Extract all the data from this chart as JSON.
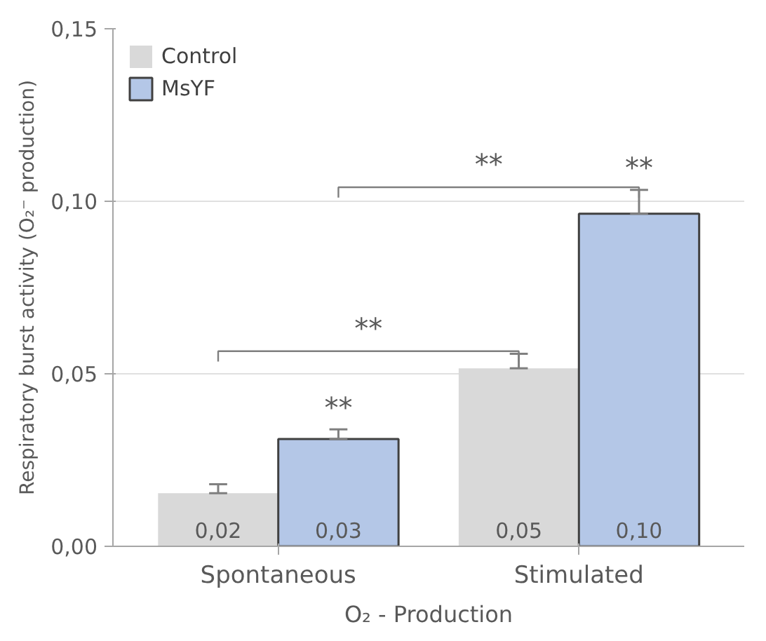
{
  "chart_data": {
    "type": "bar",
    "categories": [
      "Spontaneous",
      "Stimulated"
    ],
    "xlabel": "O₂ - Production",
    "ylabel": "Respiratory burst activity (O₂⁻ production)",
    "series": [
      {
        "name": "Control",
        "color": "#d9d9d9",
        "values": [
          0.0154,
          0.0516
        ],
        "errors": [
          [
            0.0154,
            0.018
          ],
          [
            0.0516,
            0.0558
          ]
        ],
        "value_labels": [
          "0,02",
          "0,05"
        ]
      },
      {
        "name": "MsYF",
        "color": "#b4c7e7",
        "values": [
          0.0311,
          0.0964
        ],
        "errors": [
          [
            0.0311,
            0.0339
          ],
          [
            0.0964,
            0.1033
          ]
        ],
        "value_labels": [
          "0,03",
          "0,10"
        ]
      }
    ],
    "ylim": [
      0,
      0.15
    ],
    "yticks": [
      {
        "value": 0,
        "label": "0,00"
      },
      {
        "value": 0.05,
        "label": "0,05"
      },
      {
        "value": 0.1,
        "label": "0,10"
      },
      {
        "value": 0.15,
        "label": "0,15"
      }
    ],
    "grid": "y",
    "legend": "top left",
    "annotations": [
      "**",
      "**",
      "**",
      "**"
    ]
  }
}
